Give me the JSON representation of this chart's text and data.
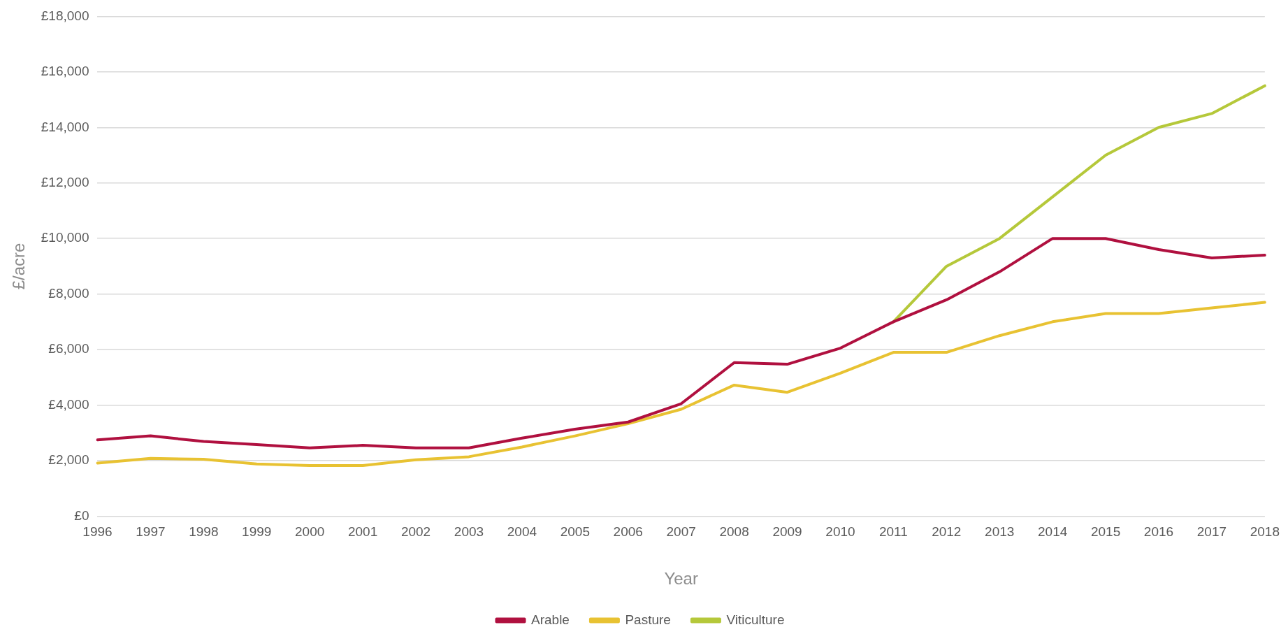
{
  "chart_data": {
    "type": "line",
    "xlabel": "Year",
    "ylabel": "£/acre",
    "categories": [
      "1996",
      "1997",
      "1998",
      "1999",
      "2000",
      "2001",
      "2002",
      "2003",
      "2004",
      "2005",
      "2006",
      "2007",
      "2008",
      "2009",
      "2010",
      "2011",
      "2012",
      "2013",
      "2014",
      "2015",
      "2016",
      "2017",
      "2018"
    ],
    "series": [
      {
        "name": "Arable",
        "color": "#b0103f",
        "values": [
          2750,
          2890,
          2690,
          2580,
          2460,
          2550,
          2460,
          2460,
          2810,
          3130,
          3390,
          4050,
          5530,
          5470,
          6050,
          7000,
          7790,
          8800,
          10000,
          10000,
          9600,
          9300,
          9400
        ]
      },
      {
        "name": "Pasture",
        "color": "#e8c232",
        "values": [
          1910,
          2080,
          2050,
          1880,
          1820,
          1820,
          2030,
          2140,
          2490,
          2890,
          3330,
          3850,
          4720,
          4460,
          5150,
          5900,
          5900,
          6500,
          7000,
          7300,
          7300,
          7500,
          7700
        ]
      },
      {
        "name": "Viticulture",
        "color": "#b5c83a",
        "values": [
          null,
          null,
          null,
          null,
          null,
          null,
          null,
          null,
          null,
          null,
          null,
          null,
          null,
          null,
          null,
          7000,
          9000,
          10000,
          11500,
          13000,
          14000,
          14500,
          15500
        ]
      }
    ],
    "ylim": [
      0,
      18000
    ],
    "yticks": [
      {
        "value": 0,
        "label": "£0"
      },
      {
        "value": 2000,
        "label": "£2,000"
      },
      {
        "value": 4000,
        "label": "£4,000"
      },
      {
        "value": 6000,
        "label": "£6,000"
      },
      {
        "value": 8000,
        "label": "£8,000"
      },
      {
        "value": 10000,
        "label": "£10,000"
      },
      {
        "value": 12000,
        "label": "£12,000"
      },
      {
        "value": 14000,
        "label": "£14,000"
      },
      {
        "value": 16000,
        "label": "£16,000"
      },
      {
        "value": 18000,
        "label": "£18,000"
      }
    ],
    "grid": "y",
    "legend": "bottom",
    "marker": "none",
    "line_style": "solid"
  }
}
